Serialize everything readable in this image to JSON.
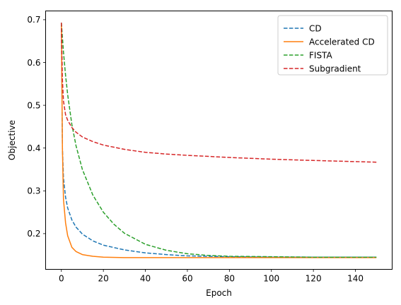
{
  "chart_data": {
    "type": "line",
    "xlabel": "Epoch",
    "ylabel": "Objective",
    "xlim": [
      -7.5,
      157.5
    ],
    "ylim": [
      0.1165,
      0.7205
    ],
    "xticks": [
      0,
      20,
      40,
      60,
      80,
      100,
      120,
      140
    ],
    "yticks": [
      0.2,
      0.3,
      0.4,
      0.5,
      0.6,
      0.7
    ],
    "grid": false,
    "legend_position": "top-right",
    "series": [
      {
        "name": "CD",
        "color": "#1f77b4",
        "dash": "dashed",
        "x": [
          0,
          0.5,
          1,
          2,
          3,
          5,
          7,
          10,
          15,
          20,
          30,
          40,
          50,
          60,
          80,
          100,
          120,
          150
        ],
        "y": [
          0.693,
          0.4,
          0.33,
          0.285,
          0.26,
          0.232,
          0.215,
          0.199,
          0.183,
          0.173,
          0.162,
          0.155,
          0.151,
          0.148,
          0.146,
          0.145,
          0.145,
          0.145
        ]
      },
      {
        "name": "Accelerated CD",
        "color": "#ff7f0e",
        "dash": "solid",
        "x": [
          0,
          0.5,
          1,
          2,
          3,
          5,
          7,
          10,
          15,
          20,
          30,
          40,
          60,
          80,
          100,
          150
        ],
        "y": [
          0.693,
          0.4,
          0.28,
          0.225,
          0.195,
          0.168,
          0.158,
          0.151,
          0.147,
          0.145,
          0.144,
          0.144,
          0.144,
          0.144,
          0.144,
          0.144
        ]
      },
      {
        "name": "FISTA",
        "color": "#2ca02c",
        "dash": "dashed",
        "x": [
          0,
          1,
          2,
          3,
          5,
          7,
          10,
          15,
          20,
          25,
          30,
          40,
          50,
          60,
          70,
          80,
          100,
          120,
          150
        ],
        "y": [
          0.693,
          0.625,
          0.57,
          0.525,
          0.455,
          0.405,
          0.35,
          0.29,
          0.25,
          0.222,
          0.201,
          0.175,
          0.161,
          0.153,
          0.149,
          0.147,
          0.146,
          0.145,
          0.145
        ]
      },
      {
        "name": "Subgradient",
        "color": "#d62728",
        "dash": "dashed",
        "x": [
          0,
          0.5,
          1,
          2,
          3,
          5,
          7,
          10,
          15,
          20,
          30,
          40,
          50,
          60,
          80,
          100,
          120,
          150
        ],
        "y": [
          0.693,
          0.56,
          0.51,
          0.478,
          0.465,
          0.448,
          0.437,
          0.426,
          0.415,
          0.407,
          0.397,
          0.39,
          0.386,
          0.383,
          0.378,
          0.374,
          0.371,
          0.367
        ]
      }
    ]
  }
}
